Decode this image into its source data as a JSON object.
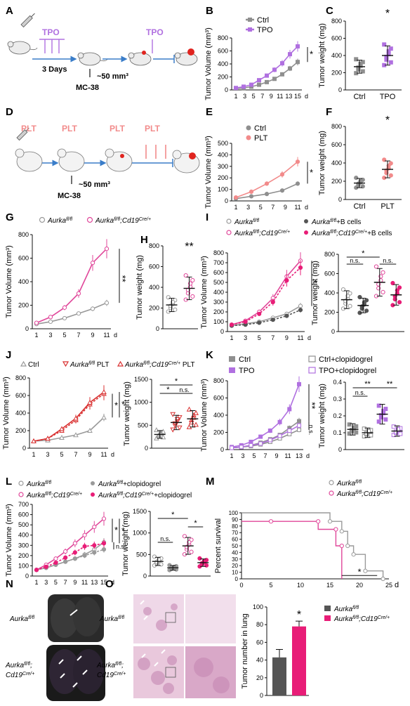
{
  "colors": {
    "ctrl": "#8f8f8f",
    "tpo": "#b070e0",
    "plt": "#f28b8b",
    "aurka": "#9a9a9a",
    "cd19": "#e0479a",
    "magenta": "#e81d77",
    "dark": "#555555",
    "red": "#d93030"
  },
  "panel_labels": [
    "A",
    "B",
    "C",
    "D",
    "E",
    "F",
    "G",
    "H",
    "I",
    "J",
    "K",
    "L",
    "M",
    "N",
    "O"
  ],
  "schematic_A": {
    "drug": "TPO",
    "duration": "3 Days",
    "size": "~50 mm³",
    "cell_line": "MC-38"
  },
  "schematic_D": {
    "drug": "PLT",
    "size": "~50 mm³",
    "cell_line": "MC-38"
  },
  "common": {
    "tumor_volume": "Tumor Volume (mm³)",
    "tumor_weight": "Tumor weight (mg)",
    "d": "d",
    "star": "*",
    "star2": "**",
    "ns": "n.s."
  },
  "chart_data": [
    {
      "panel": "B",
      "type": "line",
      "series": [
        {
          "name": "Ctrl",
          "values": [
            20,
            30,
            50,
            80,
            120,
            170,
            240,
            330,
            430
          ]
        },
        {
          "name": "TPO",
          "values": [
            30,
            50,
            80,
            150,
            220,
            310,
            410,
            550,
            670
          ]
        }
      ],
      "xticks": [
        "1",
        "3",
        "5",
        "7",
        "9",
        "11",
        "13",
        "15"
      ],
      "ylim": [
        0,
        800
      ],
      "yticks": [
        0,
        200,
        400,
        600,
        800
      ]
    },
    {
      "panel": "C",
      "type": "scatter",
      "categories": [
        "Ctrl",
        "TPO"
      ],
      "means": [
        270,
        400
      ],
      "ylim": [
        0,
        800
      ],
      "yticks": [
        0,
        200,
        400,
        600,
        800
      ]
    },
    {
      "panel": "E",
      "type": "line",
      "series": [
        {
          "name": "Ctrl",
          "values": [
            20,
            40,
            60,
            90,
            150
          ]
        },
        {
          "name": "PLT",
          "values": [
            30,
            80,
            150,
            230,
            340
          ]
        }
      ],
      "xticks": [
        "1",
        "3",
        "5",
        "7",
        "9",
        "11"
      ],
      "ylim": [
        0,
        500
      ],
      "yticks": [
        0,
        100,
        200,
        300,
        400,
        500
      ]
    },
    {
      "panel": "F",
      "type": "scatter",
      "categories": [
        "Ctrl",
        "PLT"
      ],
      "means": [
        180,
        330
      ],
      "ylim": [
        0,
        800
      ],
      "yticks": [
        0,
        200,
        400,
        600,
        800
      ]
    },
    {
      "panel": "G",
      "type": "line",
      "series": [
        {
          "name": "Aurka fl/fl",
          "values": [
            40,
            60,
            90,
            130,
            170,
            220
          ]
        },
        {
          "name": "Aurka fl/fl;Cd19 Cre/+",
          "values": [
            50,
            100,
            180,
            300,
            560,
            680
          ]
        }
      ],
      "xticks": [
        "1",
        "3",
        "5",
        "7",
        "9",
        "11"
      ],
      "ylim": [
        0,
        800
      ],
      "yticks": [
        0,
        200,
        400,
        600,
        800
      ]
    },
    {
      "panel": "H",
      "type": "scatter",
      "means": [
        230,
        390
      ],
      "ylim": [
        0,
        800
      ],
      "yticks": [
        0,
        200,
        400,
        600,
        800
      ]
    },
    {
      "panel": "I",
      "type": "line",
      "series": [
        {
          "name": "Aurka fl/fl",
          "values": [
            60,
            80,
            100,
            140,
            180,
            260
          ]
        },
        {
          "name": "Aurka fl/fl+B cells",
          "values": [
            60,
            70,
            90,
            120,
            160,
            220
          ]
        },
        {
          "name": "Aurka fl/fl;Cd19 Cre/+",
          "values": [
            70,
            110,
            200,
            340,
            560,
            720
          ]
        },
        {
          "name": "Aurka fl/fl;Cd19 Cre/+ +B cells",
          "values": [
            70,
            100,
            180,
            300,
            520,
            650
          ]
        }
      ],
      "xticks": [
        "1",
        "3",
        "5",
        "7",
        "9",
        "11"
      ],
      "ylim": [
        0,
        800
      ],
      "yticks": [
        0,
        100,
        200,
        300,
        400,
        500,
        600,
        700,
        800
      ]
    },
    {
      "panel": "I2",
      "type": "scatter",
      "means": [
        330,
        270,
        510,
        380
      ],
      "ylim": [
        0,
        800
      ],
      "yticks": [
        0,
        200,
        400,
        600,
        800
      ]
    },
    {
      "panel": "J",
      "type": "line",
      "series": [
        {
          "name": "Ctrl",
          "values": [
            80,
            90,
            120,
            150,
            200,
            350
          ]
        },
        {
          "name": "Aurka fl/fl PLT",
          "values": [
            80,
            110,
            200,
            320,
            500,
            620
          ]
        },
        {
          "name": "Aurka fl/fl;Cd19 Cre/+ PLT",
          "values": [
            80,
            110,
            220,
            340,
            520,
            640
          ]
        }
      ],
      "xticks": [
        "1",
        "3",
        "5",
        "7",
        "9",
        "11"
      ],
      "ylim": [
        0,
        800
      ],
      "yticks": [
        0,
        200,
        400,
        600,
        800
      ]
    },
    {
      "panel": "J2",
      "type": "scatter",
      "means": [
        300,
        560,
        640
      ],
      "ylim": [
        0,
        1500
      ],
      "yticks": [
        0,
        500,
        1000,
        1500
      ]
    },
    {
      "panel": "K",
      "type": "line",
      "series": [
        {
          "name": "Ctrl",
          "values": [
            20,
            30,
            50,
            80,
            120,
            170,
            250,
            330
          ]
        },
        {
          "name": "TPO",
          "values": [
            30,
            50,
            90,
            150,
            220,
            320,
            470,
            760
          ]
        },
        {
          "name": "Ctrl+clopidogrel",
          "values": [
            20,
            30,
            40,
            60,
            90,
            130,
            180,
            230
          ]
        },
        {
          "name": "TPO+clopidogrel",
          "values": [
            20,
            30,
            50,
            70,
            110,
            160,
            220,
            280
          ]
        }
      ],
      "xticks": [
        "1",
        "3",
        "5",
        "7",
        "9",
        "11",
        "13"
      ],
      "ylim": [
        0,
        800
      ],
      "yticks": [
        0,
        200,
        400,
        600,
        800
      ]
    },
    {
      "panel": "K2",
      "type": "scatter",
      "means": [
        0.12,
        0.1,
        0.21,
        0.11
      ],
      "ylim": [
        0,
        0.4
      ],
      "yticks": [
        0.0,
        0.1,
        0.2,
        0.3,
        0.4
      ]
    },
    {
      "panel": "L",
      "type": "line",
      "series": [
        {
          "name": "Aurka fl/fl",
          "values": [
            60,
            80,
            110,
            140,
            170,
            210,
            260,
            330
          ]
        },
        {
          "name": "Aurka fl/fl;Cd19 Cre/+",
          "values": [
            60,
            110,
            170,
            240,
            320,
            400,
            480,
            560
          ]
        },
        {
          "name": "Aurka fl/fl+clopidogrel",
          "values": [
            60,
            80,
            110,
            140,
            170,
            200,
            230,
            260
          ]
        },
        {
          "name": "Aurka fl/fl;Cd19 Cre/+ +clopidogrel",
          "values": [
            60,
            90,
            130,
            180,
            230,
            290,
            300,
            320
          ]
        }
      ],
      "xticks": [
        "1",
        "3",
        "5",
        "7",
        "9",
        "11",
        "13",
        "15"
      ],
      "ylim": [
        0,
        700
      ],
      "yticks": [
        0,
        100,
        200,
        300,
        400,
        500,
        600,
        700
      ]
    },
    {
      "panel": "L2",
      "type": "scatter",
      "means": [
        340,
        190,
        700,
        310
      ],
      "ylim": [
        0,
        1500
      ],
      "yticks": [
        0,
        500,
        1000,
        1500
      ]
    },
    {
      "panel": "M",
      "type": "step",
      "xticks": [
        "0",
        "5",
        "10",
        "15",
        "20",
        "25"
      ],
      "ylim": [
        0,
        100
      ],
      "yticks": [
        0,
        10,
        20,
        30,
        40,
        50,
        60,
        70,
        80,
        90,
        100
      ],
      "ylabel": "Percent survival"
    },
    {
      "panel": "O",
      "type": "bar",
      "categories": [
        "Aurka fl/fl",
        "Aurka fl/fl;Cd19 Cre/+"
      ],
      "values": [
        43,
        78
      ],
      "errors": [
        9,
        6
      ],
      "ylim": [
        0,
        100
      ],
      "yticks": [
        0,
        20,
        40,
        60,
        80,
        100
      ],
      "ylabel": "Tumor number in lung"
    }
  ],
  "legends": {
    "B": [
      "Ctrl",
      "TPO"
    ],
    "E": [
      "Ctrl",
      "PLT"
    ],
    "xcats": {
      "ctrl": "Ctrl",
      "tpo": "TPO",
      "plt": "PLT"
    },
    "aurka": "Aurka",
    "flfl": "fl/fl",
    "cd19": ";Cd19",
    "cre": "Cre/+",
    "bcells": "+B cells",
    "plt_suffix": " PLT",
    "ctrl_clop": "Ctrl+clopidogrel",
    "tpo_clop": "TPO+clopidogrel",
    "clop": "+clopidogrel",
    "ctrl": "Ctrl",
    "tpo": "TPO"
  },
  "N": {
    "top_label": "Aurka",
    "bottom_label_1": "Aurka",
    "bottom_label_2": "Cd19"
  },
  "O": {
    "top_label": "Aurka",
    "bottom_label_1": "Aurka",
    "bottom_label_2": "Cd19"
  }
}
